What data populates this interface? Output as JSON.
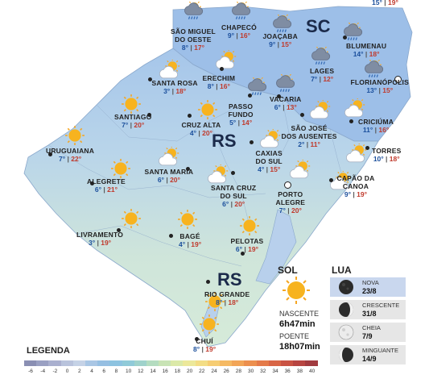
{
  "states": [
    "SC",
    "RS"
  ],
  "cities": [
    {
      "id": "sao-miguel-do-oeste",
      "name": [
        "SÃO MIGUEL",
        "DO OESTE"
      ],
      "min": "8°",
      "max": "17°",
      "icon": "rain-icon"
    },
    {
      "id": "chapeco",
      "name": [
        "CHAPECÓ"
      ],
      "min": "9°",
      "max": "16°",
      "icon": "rain-icon"
    },
    {
      "id": "joacaba",
      "name": [
        "JOAÇABA"
      ],
      "min": "9°",
      "max": "15°",
      "icon": "rain-icon"
    },
    {
      "id": "blumenau",
      "name": [
        "BLUMENAU"
      ],
      "min": "14°",
      "max": "18°",
      "icon": "rain-icon"
    },
    {
      "id": "lages",
      "name": [
        "LAGES"
      ],
      "min": "7°",
      "max": "12°",
      "icon": "rain-icon"
    },
    {
      "id": "florianopolis",
      "name": [
        "FLORIANÓPOLIS"
      ],
      "min": "13°",
      "max": "15°",
      "icon": "rain-icon"
    },
    {
      "id": "erechim",
      "name": [
        "ERECHIM"
      ],
      "min": "8°",
      "max": "16°",
      "icon": "partly-cloudy-icon"
    },
    {
      "id": "santa-rosa",
      "name": [
        "SANTA ROSA"
      ],
      "min": "3°",
      "max": "18°",
      "icon": "partly-cloudy-icon"
    },
    {
      "id": "passo-fundo",
      "name": [
        "PASSO",
        "FUNDO"
      ],
      "min": "5°",
      "max": "14°",
      "icon": "rain-icon"
    },
    {
      "id": "vacaria",
      "name": [
        "VACARIA"
      ],
      "min": "6°",
      "max": "13°",
      "icon": "rain-icon"
    },
    {
      "id": "sao-jose-dos-ausentes",
      "name": [
        "SÃO JOSÉ",
        "DOS AUSENTES"
      ],
      "min": "2°",
      "max": "11°",
      "icon": "partly-cloudy-icon"
    },
    {
      "id": "criciuma",
      "name": [
        "CRICIÚMA"
      ],
      "min": "11°",
      "max": "16°",
      "icon": "partly-cloudy-icon"
    },
    {
      "id": "santiago",
      "name": [
        "SANTIAGO"
      ],
      "min": "7°",
      "max": "20°",
      "icon": "sun-icon"
    },
    {
      "id": "cruz-alta",
      "name": [
        "CRUZ ALTA"
      ],
      "min": "4°",
      "max": "20°",
      "icon": "sun-icon"
    },
    {
      "id": "uruguaiana",
      "name": [
        "URUGUAIANA"
      ],
      "min": "7°",
      "max": "22°",
      "icon": "sun-icon"
    },
    {
      "id": "caxias-do-sul",
      "name": [
        "CAXIAS",
        "DO SUL"
      ],
      "min": "4°",
      "max": "15°",
      "icon": "partly-cloudy-icon"
    },
    {
      "id": "torres",
      "name": [
        "TORRES"
      ],
      "min": "10°",
      "max": "18°",
      "icon": "partly-cloudy-icon"
    },
    {
      "id": "alegrete",
      "name": [
        "ALEGRETE"
      ],
      "min": "6°",
      "max": "21°",
      "icon": "sun-icon"
    },
    {
      "id": "santa-maria",
      "name": [
        "SANTA MARIA"
      ],
      "min": "6°",
      "max": "20°",
      "icon": "partly-cloudy-icon"
    },
    {
      "id": "santa-cruz-do-sul",
      "name": [
        "SANTA CRUZ",
        "DO SUL"
      ],
      "min": "6°",
      "max": "20°",
      "icon": "partly-cloudy-icon"
    },
    {
      "id": "capao-da-canoa",
      "name": [
        "CAPÃO DA",
        "CANOA"
      ],
      "min": "9°",
      "max": "19°",
      "icon": "partly-cloudy-icon"
    },
    {
      "id": "porto-alegre",
      "name": [
        "PORTO",
        "ALEGRE"
      ],
      "min": "7°",
      "max": "20°",
      "icon": "partly-cloudy-icon"
    },
    {
      "id": "livramento",
      "name": [
        "LIVRAMENTO"
      ],
      "min": "3°",
      "max": "19°",
      "icon": "sun-icon"
    },
    {
      "id": "bage",
      "name": [
        "BAGÉ"
      ],
      "min": "4°",
      "max": "19°",
      "icon": "sun-icon"
    },
    {
      "id": "pelotas",
      "name": [
        "PELOTAS"
      ],
      "min": "6°",
      "max": "19°",
      "icon": "sun-icon"
    },
    {
      "id": "rio-grande",
      "name": [
        "RIO GRANDE"
      ],
      "min": "8°",
      "max": "18°",
      "icon": "sun-icon"
    },
    {
      "id": "chui",
      "name": [
        "CHUÍ"
      ],
      "min": "8°",
      "max": "19°",
      "icon": "sun-icon"
    }
  ],
  "top_partial": {
    "left_max": "15°",
    "right_max": "19°"
  },
  "sol": {
    "title": "SOL",
    "nascente_label": "NASCENTE",
    "nascente": "6h47min",
    "poente_label": "POENTE",
    "poente": "18h07min"
  },
  "lua": {
    "title": "LUA",
    "phases": [
      {
        "label": "NOVA",
        "date": "23/8",
        "icon": "new-moon-icon",
        "active": true
      },
      {
        "label": "CRESCENTE",
        "date": "31/8",
        "icon": "waxing-moon-icon",
        "active": false
      },
      {
        "label": "CHEIA",
        "date": "7/9",
        "icon": "full-moon-icon",
        "active": false
      },
      {
        "label": "MINGUANTE",
        "date": "14/9",
        "icon": "waning-moon-icon",
        "active": false
      }
    ]
  },
  "legend": {
    "title": "LEGENDA",
    "ticks": [
      "-6",
      "-4",
      "-2",
      "0",
      "2",
      "4",
      "6",
      "8",
      "10",
      "12",
      "14",
      "16",
      "18",
      "20",
      "22",
      "24",
      "26",
      "28",
      "30",
      "32",
      "34",
      "36",
      "38",
      "40"
    ],
    "colors": [
      "#8a8fb3",
      "#9aa0c2",
      "#aab0cf",
      "#b9c3dc",
      "#c5d2e6",
      "#a9c6e4",
      "#96bfe2",
      "#8dc3e0",
      "#90cad8",
      "#9fd2cb",
      "#b4dcc0",
      "#c8e3b5",
      "#dbe9a8",
      "#ece89a",
      "#f3dd85",
      "#f6cd73",
      "#f5b963",
      "#f2a557",
      "#ec8f4e",
      "#e47a49",
      "#d86545",
      "#c95343",
      "#b74541",
      "#a13b3f"
    ]
  },
  "colors": {
    "sea": "#b8d0ec",
    "land_north": "#9cc0e8",
    "land_south": "#cfe6d9",
    "min": "#1b4f9c",
    "max": "#c0392b"
  }
}
